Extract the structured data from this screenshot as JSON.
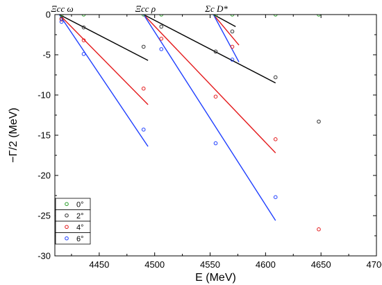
{
  "chart_data": {
    "type": "scatter",
    "xlabel": "E (MeV)",
    "ylabel": "−Γ/2 (MeV)",
    "xlim": [
      4410,
      4700
    ],
    "ylim": [
      -30,
      0
    ],
    "x_ticks": [
      "4450",
      "4500",
      "4550",
      "4600",
      "4650",
      "4700"
    ],
    "y_ticks": [
      "0",
      "-5",
      "-10",
      "-15",
      "-20",
      "-25",
      "-30"
    ],
    "x_tick_values": [
      4450,
      4500,
      4550,
      4600,
      4650,
      4700
    ],
    "y_tick_values": [
      0,
      -5,
      -10,
      -15,
      -20,
      -25,
      -30
    ],
    "grid": false,
    "legend_position": "bottom-left",
    "thresholds": [
      {
        "label": "Ξcc ω",
        "x": 4414
      },
      {
        "label": "Ξcc ρ",
        "x": 4490
      },
      {
        "label": "Σc D*",
        "x": 4553
      }
    ],
    "series": [
      {
        "name": "0°",
        "color": "#2ca02c",
        "points": [
          [
            4416,
            0
          ],
          [
            4436,
            0
          ],
          [
            4490,
            0
          ],
          [
            4506,
            0
          ],
          [
            4555,
            0
          ],
          [
            4570,
            0
          ],
          [
            4609,
            0
          ],
          [
            4648,
            0
          ]
        ]
      },
      {
        "name": "2°",
        "color": "#333333",
        "points": [
          [
            4416,
            -0.5
          ],
          [
            4436,
            -1.6
          ],
          [
            4490,
            -4.0
          ],
          [
            4506,
            -1.5
          ],
          [
            4555,
            -4.6
          ],
          [
            4570,
            -2.1
          ],
          [
            4609,
            -7.8
          ],
          [
            4648,
            -13.3
          ]
        ]
      },
      {
        "name": "4°",
        "color": "#e41a1c",
        "points": [
          [
            4416,
            -0.6
          ],
          [
            4436,
            -3.2
          ],
          [
            4490,
            -9.2
          ],
          [
            4506,
            -3.0
          ],
          [
            4555,
            -10.2
          ],
          [
            4570,
            -4.0
          ],
          [
            4609,
            -15.5
          ],
          [
            4648,
            -26.7
          ]
        ]
      },
      {
        "name": "6°",
        "color": "#1f3fff",
        "points": [
          [
            4416,
            -0.9
          ],
          [
            4436,
            -4.9
          ],
          [
            4490,
            -14.3
          ],
          [
            4506,
            -4.3
          ],
          [
            4555,
            -16.0
          ],
          [
            4570,
            -5.6
          ],
          [
            4609,
            -22.7
          ]
        ]
      }
    ],
    "lines": [
      {
        "series": "2°",
        "color": "#000000",
        "from": [
          4414,
          0
        ],
        "to": [
          4494,
          -5.7
        ]
      },
      {
        "series": "4°",
        "color": "#e41a1c",
        "from": [
          4414,
          0
        ],
        "to": [
          4494,
          -11.2
        ]
      },
      {
        "series": "6°",
        "color": "#1f3fff",
        "from": [
          4414,
          0
        ],
        "to": [
          4494,
          -16.4
        ]
      },
      {
        "series": "2°",
        "color": "#000000",
        "from": [
          4490,
          0
        ],
        "to": [
          4609,
          -8.5
        ]
      },
      {
        "series": "4°",
        "color": "#e41a1c",
        "from": [
          4490,
          0
        ],
        "to": [
          4609,
          -17.2
        ]
      },
      {
        "series": "6°",
        "color": "#1f3fff",
        "from": [
          4490,
          0
        ],
        "to": [
          4609,
          -25.6
        ]
      },
      {
        "series": "2°",
        "color": "#000000",
        "from": [
          4553,
          0
        ],
        "to": [
          4573,
          -1.5
        ]
      },
      {
        "series": "4°",
        "color": "#e41a1c",
        "from": [
          4553,
          0
        ],
        "to": [
          4576,
          -3.8
        ]
      },
      {
        "series": "6°",
        "color": "#1f3fff",
        "from": [
          4553,
          0
        ],
        "to": [
          4576,
          -5.9
        ]
      }
    ]
  }
}
